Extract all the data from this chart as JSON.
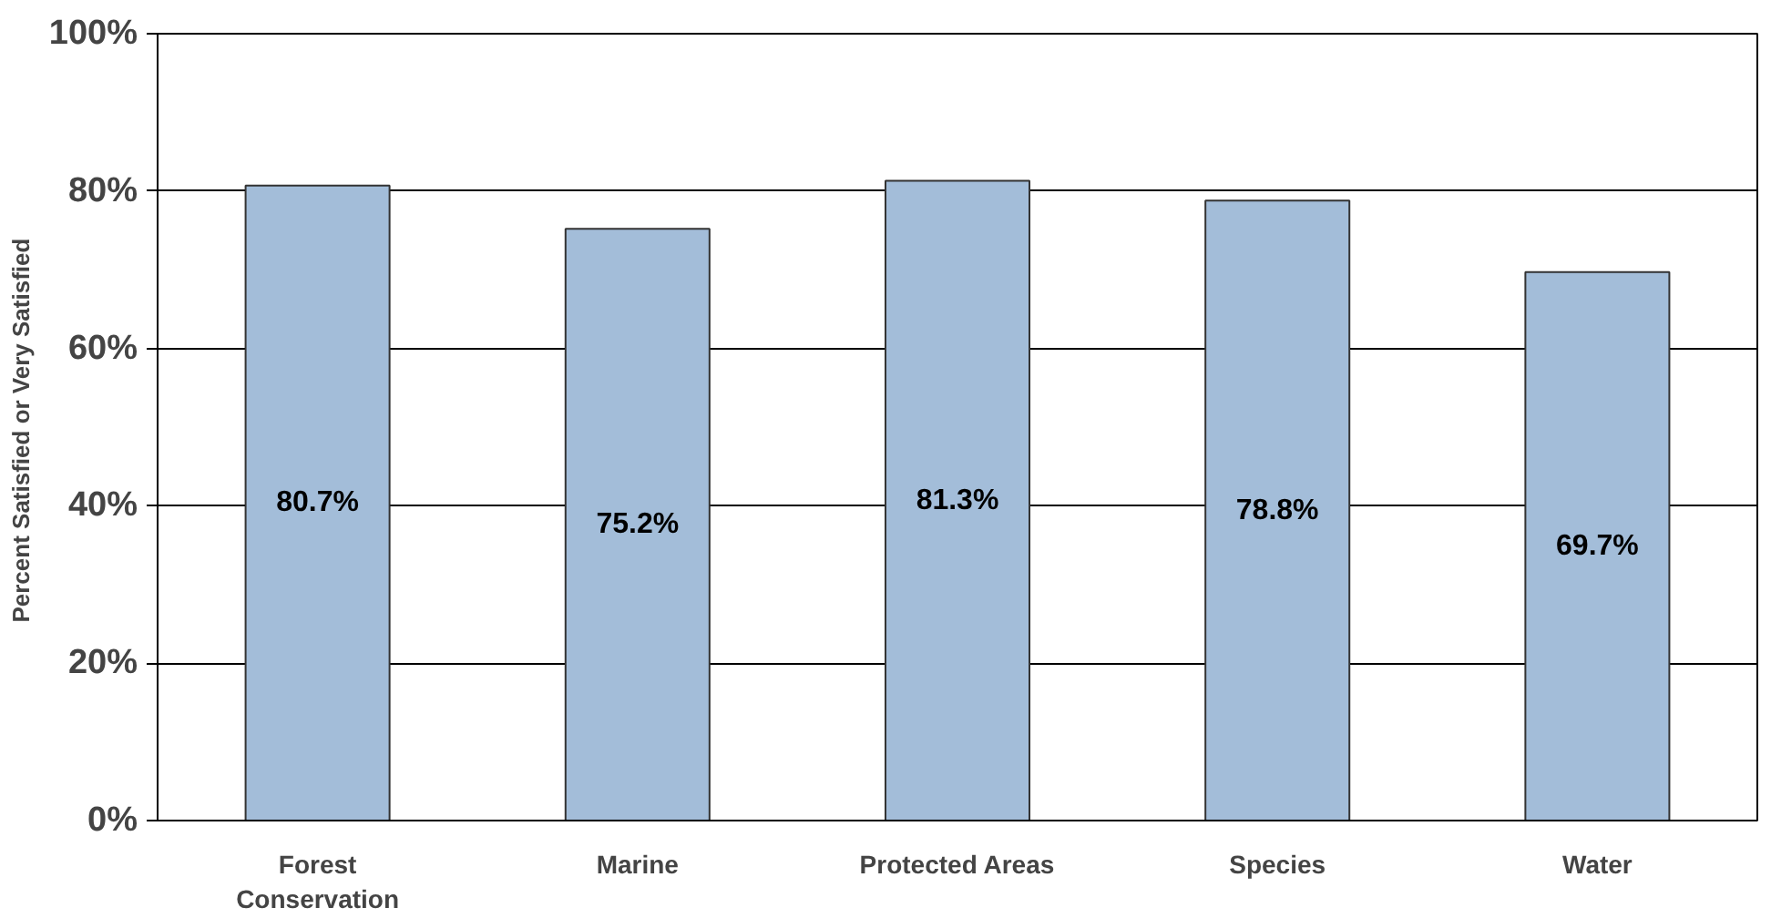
{
  "chart_data": {
    "type": "bar",
    "ylabel": "Percent  Satisfied or Very Satisfied",
    "categories": [
      "Forest Conservation",
      "Marine",
      "Protected Areas",
      "Species",
      "Water"
    ],
    "values": [
      80.7,
      75.2,
      81.3,
      78.8,
      69.7
    ],
    "color": "#a3bdd9",
    "ylim": [
      0,
      100
    ],
    "yticks": [
      {
        "value": 0,
        "label": "0%"
      },
      {
        "value": 20,
        "label": "20%"
      },
      {
        "value": 40,
        "label": "40%"
      },
      {
        "value": 60,
        "label": "60%"
      },
      {
        "value": 80,
        "label": "80%"
      },
      {
        "value": 100,
        "label": "100%"
      }
    ],
    "value_labels": [
      "80.7%",
      "75.2%",
      "81.3%",
      "78.8%",
      "69.7%"
    ],
    "grid": "y"
  }
}
